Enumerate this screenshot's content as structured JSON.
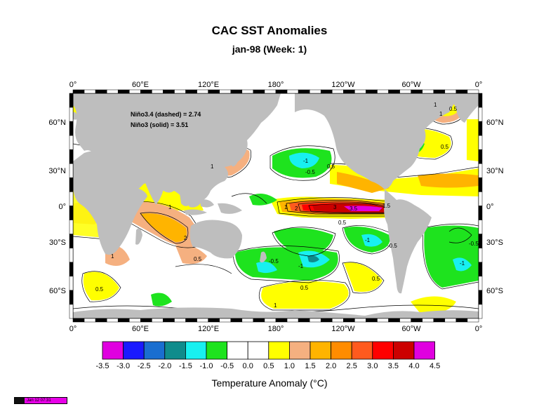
{
  "title": "CAC SST Anomalies",
  "subtitle": "jan-98 (Week: 1)",
  "x_ticks_top": [
    "0°",
    "60°E",
    "120°E",
    "180°",
    "120°W",
    "60°W",
    "0°"
  ],
  "x_ticks_bottom": [
    "0°",
    "60°E",
    "120°E",
    "180°",
    "120°W",
    "60°W",
    "0°"
  ],
  "y_ticks_left": [
    "60°N",
    "30°N",
    "0°",
    "30°S",
    "60°S"
  ],
  "y_ticks_right": [
    "60°N",
    "30°N",
    "0°",
    "30°S",
    "60°S"
  ],
  "annotations": {
    "nino34": "Niño3.4 (dashed) = 2.74",
    "nino3": "Niño3 (solid) = 3.51"
  },
  "colorbar": {
    "labels": [
      "-3.5",
      "-3.0",
      "-2.5",
      "-2.0",
      "-1.5",
      "-1.0",
      "-0.5",
      "0.0",
      "0.5",
      "1.0",
      "1.5",
      "2.0",
      "2.5",
      "3.0",
      "3.5",
      "4.0",
      "4.5"
    ],
    "colors": [
      "#e000e0",
      "#1a1aff",
      "#1a6ed0",
      "#0f8c8c",
      "#18f0f0",
      "#1ee31e",
      "#ffffff",
      "#ffffff",
      "#ffff00",
      "#f5b080",
      "#ffb400",
      "#ff8c00",
      "#ff5a1e",
      "#ff0000",
      "#cc0000",
      "#e000e0"
    ],
    "title": "Temperature Anomaly (°C)"
  },
  "contour_labels": [
    "0.5",
    "1",
    "0.5",
    "1",
    "-0.5",
    "0.5",
    "-1",
    "1",
    "2",
    "3",
    "3.5",
    "-1",
    "1.5",
    "0.5",
    "1",
    "-0.5",
    "-1",
    "-0.5",
    "0.5",
    "1",
    "2",
    "0.5",
    "-0.5",
    "0.5",
    "-1",
    "1",
    "0.5",
    "1"
  ],
  "stamp": "Jan 12 07:31",
  "chart_data": {
    "type": "map",
    "projection": "cylindrical equidistant",
    "lon_range": [
      0,
      360
    ],
    "lat_range": [
      -80,
      80
    ],
    "field": "SST anomaly (°C)",
    "highlights": [
      {
        "region": "eastern equatorial Pacific",
        "anomaly_max": 4.5
      },
      {
        "region": "south Indian Ocean",
        "anomaly": 1.5
      },
      {
        "region": "north central Pacific",
        "anomaly": -1.5
      },
      {
        "region": "south Atlantic",
        "anomaly": -1.0
      }
    ]
  }
}
